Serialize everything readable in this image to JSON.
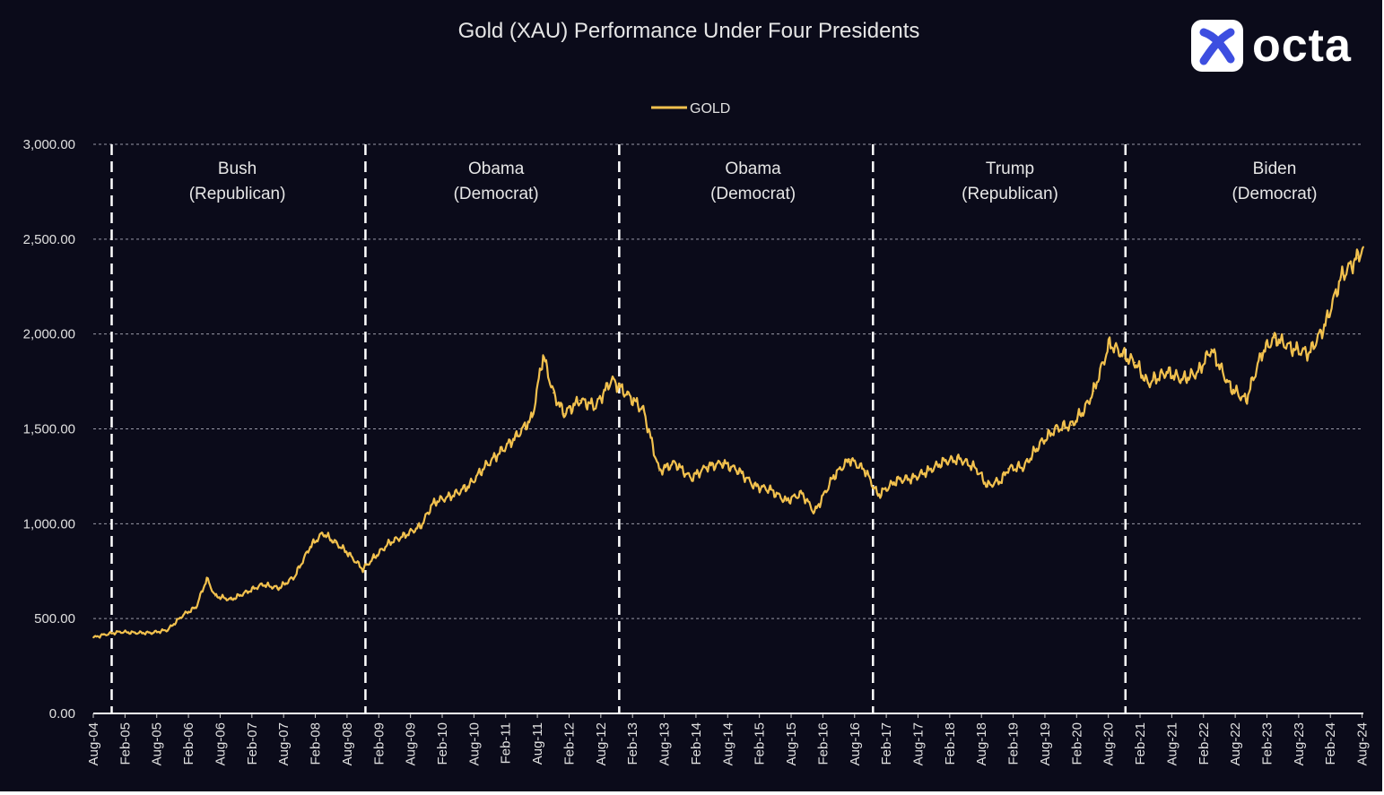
{
  "chart_data": {
    "type": "line",
    "title": "Gold (XAU) Performance Under Four Presidents",
    "legend": {
      "position": "top-center",
      "entries": [
        "GOLD"
      ]
    },
    "ylim": [
      0,
      3000
    ],
    "yticks": [
      "0.00",
      "500.00",
      "1,000.00",
      "1,500.00",
      "2,000.00",
      "2,500.00",
      "3,000.00"
    ],
    "ytick_values": [
      0,
      500,
      1000,
      1500,
      2000,
      2500,
      3000
    ],
    "xlim": [
      "Aug-04",
      "Aug-24"
    ],
    "xticks": [
      "Aug-04",
      "Feb-05",
      "Aug-05",
      "Feb-06",
      "Aug-06",
      "Feb-07",
      "Aug-07",
      "Feb-08",
      "Aug-08",
      "Feb-09",
      "Aug-09",
      "Feb-10",
      "Aug-10",
      "Feb-11",
      "Aug-11",
      "Feb-12",
      "Aug-12",
      "Feb-13",
      "Aug-13",
      "Feb-14",
      "Aug-14",
      "Feb-15",
      "Aug-15",
      "Feb-16",
      "Aug-16",
      "Feb-17",
      "Aug-17",
      "Feb-18",
      "Aug-18",
      "Feb-19",
      "Aug-19",
      "Feb-20",
      "Aug-20",
      "Feb-21",
      "Aug-21",
      "Feb-22",
      "Aug-22",
      "Feb-23",
      "Aug-23",
      "Feb-24",
      "Aug-24"
    ],
    "grid": true,
    "series": [
      {
        "name": "GOLD",
        "color": "#f2c14e",
        "x": [
          2004.58,
          2004.75,
          2005.0,
          2005.25,
          2005.5,
          2005.75,
          2006.0,
          2006.2,
          2006.37,
          2006.5,
          2006.75,
          2007.0,
          2007.25,
          2007.5,
          2007.75,
          2008.0,
          2008.2,
          2008.4,
          2008.58,
          2008.83,
          2009.0,
          2009.25,
          2009.5,
          2009.75,
          2009.92,
          2010.0,
          2010.25,
          2010.5,
          2010.75,
          2011.0,
          2011.25,
          2011.5,
          2011.67,
          2011.83,
          2012.0,
          2012.25,
          2012.5,
          2012.75,
          2013.0,
          2013.25,
          2013.5,
          2013.75,
          2014.0,
          2014.25,
          2014.5,
          2014.75,
          2015.0,
          2015.25,
          2015.5,
          2015.75,
          2015.95,
          2016.25,
          2016.5,
          2016.75,
          2016.95,
          2017.25,
          2017.5,
          2017.75,
          2018.0,
          2018.25,
          2018.5,
          2018.67,
          2018.9,
          2019.0,
          2019.25,
          2019.5,
          2019.75,
          2020.0,
          2020.2,
          2020.35,
          2020.6,
          2020.85,
          2021.0,
          2021.2,
          2021.5,
          2021.75,
          2022.0,
          2022.2,
          2022.5,
          2022.75,
          2023.0,
          2023.2,
          2023.5,
          2023.75,
          2024.0,
          2024.25,
          2024.5,
          2024.6
        ],
        "values": [
          400,
          415,
          430,
          425,
          425,
          440,
          520,
          560,
          710,
          620,
          600,
          640,
          680,
          660,
          720,
          880,
          950,
          900,
          850,
          760,
          820,
          900,
          940,
          990,
          1100,
          1120,
          1150,
          1200,
          1300,
          1380,
          1460,
          1560,
          1890,
          1690,
          1580,
          1650,
          1620,
          1760,
          1680,
          1600,
          1280,
          1320,
          1240,
          1300,
          1320,
          1280,
          1200,
          1180,
          1120,
          1160,
          1060,
          1250,
          1340,
          1280,
          1150,
          1230,
          1240,
          1280,
          1330,
          1340,
          1290,
          1200,
          1230,
          1290,
          1300,
          1420,
          1500,
          1520,
          1600,
          1700,
          1950,
          1880,
          1850,
          1740,
          1800,
          1760,
          1800,
          1920,
          1720,
          1650,
          1900,
          1980,
          1920,
          1900,
          2050,
          2300,
          2400,
          2460
        ]
      }
    ],
    "annotations": [
      {
        "x": "Dec-04",
        "divider": true
      },
      {
        "x": "Dec-08",
        "divider": true
      },
      {
        "x": "Dec-12",
        "divider": true
      },
      {
        "x": "Dec-16",
        "divider": true
      },
      {
        "x": "Dec-20",
        "divider": true
      }
    ],
    "eras": [
      {
        "name": "Bush",
        "party": "(Republican)"
      },
      {
        "name": "Obama",
        "party": "(Democrat)"
      },
      {
        "name": "Obama",
        "party": "(Democrat)"
      },
      {
        "name": "Trump",
        "party": "(Republican)"
      },
      {
        "name": "Biden",
        "party": "(Democrat)"
      }
    ],
    "dividers": [
      2004.87,
      2008.87,
      2012.87,
      2016.87,
      2020.85
    ],
    "era_centers": [
      2006.85,
      2010.93,
      2014.98,
      2019.03,
      2023.2
    ]
  },
  "brand": {
    "name": "octa"
  },
  "colors": {
    "background": "#0b0b1a",
    "line": "#f2c14e",
    "grid": "#9a9aa8",
    "text": "#e0e0e0",
    "logo_blue": "#3d4ee0"
  }
}
